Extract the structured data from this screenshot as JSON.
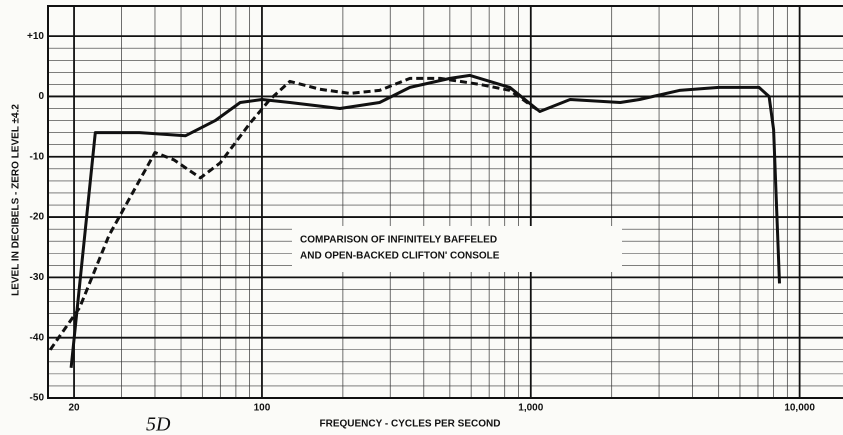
{
  "chart_data": {
    "type": "line",
    "ylabel": "LEVEL IN DECIBELS - ZERO LEVEL ±4.2",
    "xlabel": "FREQUENCY - CYCLES PER SECOND",
    "annotation": [
      "COMPARISON OF INFINITELY BAFFELED",
      "AND OPEN-BACKED CLIFTON' CONSOLE"
    ],
    "note": "5D",
    "log_x": true,
    "grid": true,
    "xlim": [
      16,
      14500
    ],
    "ylim": [
      -50,
      15
    ],
    "xticks": [
      20,
      100,
      {
        "value": 1000,
        "label": "1,000"
      },
      {
        "value": 10000,
        "label": "10,000"
      }
    ],
    "yticks": [
      {
        "value": 10,
        "label": "+10"
      },
      0,
      -10,
      -20,
      -30,
      -40,
      -50
    ],
    "series": [
      {
        "color": "#111111",
        "dash": false,
        "x": [
          19.5,
          24,
          35,
          52,
          67,
          83,
          100,
          127,
          195,
          274,
          355,
          500,
          594,
          836,
          1080,
          1400,
          2150,
          2540,
          3570,
          5010,
          7060,
          7700,
          8000,
          8420
        ],
        "values": [
          -45,
          -6,
          -6,
          -6.5,
          -4,
          -1,
          -0.5,
          -1,
          -2,
          -1,
          1.5,
          3,
          3.5,
          1.5,
          -2.5,
          -0.5,
          -1,
          -0.5,
          1,
          1.5,
          1.5,
          0,
          -5.5,
          -31
        ]
      },
      {
        "color": "#111111",
        "dash": true,
        "x": [
          16.3,
          21,
          27,
          40,
          47,
          59,
          70,
          90,
          107,
          127,
          164,
          212,
          274,
          355,
          460,
          646,
          836,
          1080
        ],
        "values": [
          -42,
          -35,
          -23,
          -9.3,
          -10.5,
          -13.5,
          -11,
          -4.5,
          -0.5,
          2.5,
          1.2,
          0.5,
          1,
          3,
          3,
          2,
          1,
          -2.5
        ]
      }
    ]
  }
}
